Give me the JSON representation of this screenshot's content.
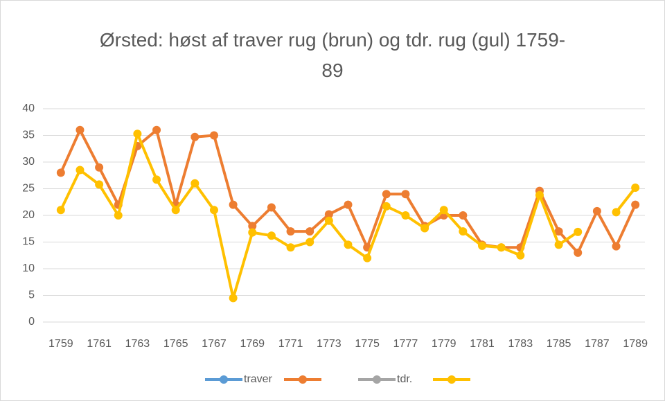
{
  "chart_data": {
    "type": "line",
    "title": "Ørsted: høst af traver rug (brun) og tdr. rug (gul) 1759-89",
    "categories": [
      1759,
      null,
      1761,
      null,
      1763,
      null,
      1765,
      null,
      1767,
      null,
      1769,
      null,
      1771,
      null,
      1773,
      null,
      1775,
      null,
      1777,
      null,
      1779,
      null,
      1781,
      null,
      1783,
      null,
      1785,
      null,
      1787,
      null,
      1789
    ],
    "series": [
      {
        "name": "traver",
        "color": "#5b9bd5",
        "values": [
          null,
          null,
          null,
          null,
          null,
          null,
          null,
          null,
          null,
          null,
          null,
          null,
          null,
          null,
          null,
          null,
          null,
          null,
          null,
          null,
          null,
          null,
          null,
          null,
          null,
          null,
          null,
          null,
          null,
          null,
          null
        ]
      },
      {
        "color": "#ed7d31",
        "values": [
          28,
          36,
          29,
          22,
          33,
          36,
          22,
          34.7,
          35,
          22,
          18,
          21.5,
          17,
          17,
          20.2,
          22,
          14,
          24,
          24,
          18,
          20,
          20,
          14.5,
          14,
          14,
          24.6,
          17,
          13,
          20.8,
          14.2,
          22
        ]
      },
      {
        "name": "tdr.",
        "color": "#a5a5a5",
        "values": [
          null,
          null,
          null,
          null,
          null,
          null,
          null,
          null,
          null,
          null,
          null,
          null,
          null,
          null,
          null,
          null,
          null,
          null,
          null,
          null,
          null,
          null,
          null,
          null,
          null,
          null,
          null,
          null,
          null,
          null,
          null
        ]
      },
      {
        "color": "#ffc000",
        "values": [
          21,
          28.5,
          25.8,
          20,
          35.3,
          26.7,
          21,
          26,
          21,
          4.5,
          16.8,
          16.2,
          14,
          15,
          19,
          14.5,
          12,
          21.7,
          20,
          17.6,
          21,
          17,
          14.3,
          14,
          12.5,
          23.8,
          14.5,
          16.9,
          null,
          20.6,
          25.2
        ]
      }
    ],
    "ylim": [
      0,
      40
    ],
    "yticks": [
      0,
      5,
      10,
      15,
      20,
      25,
      30,
      35,
      40
    ],
    "grid": true
  }
}
